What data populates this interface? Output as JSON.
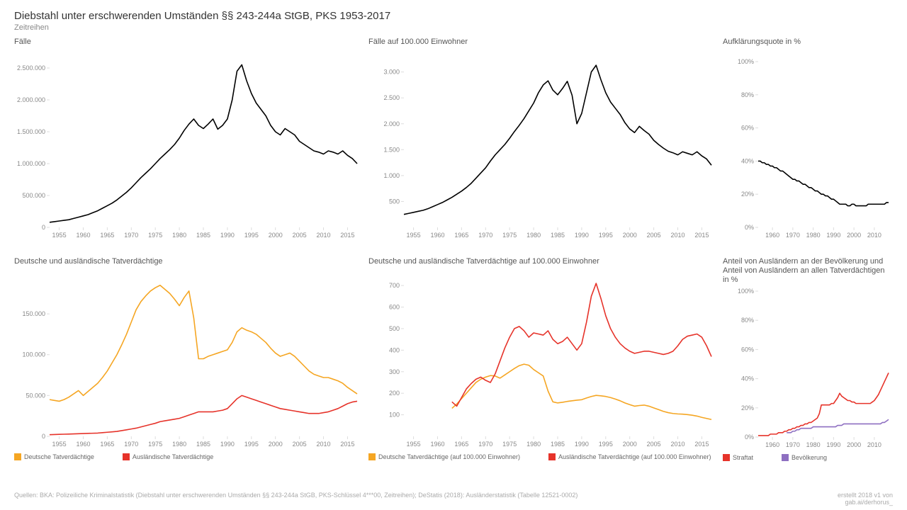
{
  "title": "Diebstahl unter erschwerenden Umständen §§ 243-244a StGB, PKS 1953-2017",
  "subtitle": "Zeitreihen",
  "colors": {
    "main": "#000000",
    "orange": "#f5a623",
    "red": "#e6332a",
    "purple": "#8e6fc1",
    "grid": "#dddddd",
    "text": "#888888",
    "bg": "#ffffff"
  },
  "footer": {
    "sources": "Quellen: BKA: Polizeiliche Kriminalstatistik (Diebstahl unter erschwerenden Umständen §§ 243-244a StGB, PKS-Schlüssel 4***00, Zeitreihen); DeStatis (2018): Ausländerstatistik (Tabelle 12521-0002)",
    "credit_line1": "erstellt 2018 v1 von",
    "credit_line2": "gab.ai/derhorus_"
  },
  "years_full": [
    1953,
    1954,
    1955,
    1956,
    1957,
    1958,
    1959,
    1960,
    1961,
    1962,
    1963,
    1964,
    1965,
    1966,
    1967,
    1968,
    1969,
    1970,
    1971,
    1972,
    1973,
    1974,
    1975,
    1976,
    1977,
    1978,
    1979,
    1980,
    1981,
    1982,
    1983,
    1984,
    1985,
    1986,
    1987,
    1988,
    1989,
    1990,
    1991,
    1992,
    1993,
    1994,
    1995,
    1996,
    1997,
    1998,
    1999,
    2000,
    2001,
    2002,
    2003,
    2004,
    2005,
    2006,
    2007,
    2008,
    2009,
    2010,
    2011,
    2012,
    2013,
    2014,
    2015,
    2016,
    2017
  ],
  "xticks_full": [
    1955,
    1960,
    1965,
    1970,
    1975,
    1980,
    1985,
    1990,
    1995,
    2000,
    2005,
    2010,
    2015
  ],
  "panels": {
    "p1": {
      "title": "Fälle",
      "ylim": [
        0,
        2600000
      ],
      "yticks": [
        0,
        500000,
        1000000,
        1500000,
        2000000,
        2500000
      ],
      "ytick_labels": [
        "0",
        "500.000",
        "1.000.000",
        "1.500.000",
        "2.000.000",
        "2.500.000"
      ],
      "xlim": [
        1953,
        2017
      ],
      "series": [
        {
          "color": "#000000",
          "width": 1.6,
          "x": "years_full",
          "y": [
            80000,
            90000,
            100000,
            110000,
            120000,
            140000,
            160000,
            180000,
            200000,
            230000,
            260000,
            300000,
            340000,
            380000,
            430000,
            490000,
            550000,
            620000,
            700000,
            780000,
            850000,
            920000,
            1000000,
            1080000,
            1150000,
            1220000,
            1300000,
            1400000,
            1520000,
            1620000,
            1700000,
            1600000,
            1550000,
            1620000,
            1700000,
            1540000,
            1600000,
            1700000,
            2000000,
            2450000,
            2550000,
            2300000,
            2100000,
            1950000,
            1850000,
            1750000,
            1600000,
            1500000,
            1450000,
            1550000,
            1500000,
            1450000,
            1350000,
            1300000,
            1250000,
            1200000,
            1180000,
            1150000,
            1200000,
            1180000,
            1150000,
            1200000,
            1130000,
            1080000,
            1000000
          ]
        }
      ]
    },
    "p2": {
      "title": "Fälle auf 100.000 Einwohner",
      "ylim": [
        0,
        3200
      ],
      "yticks": [
        500,
        1000,
        1500,
        2000,
        2500,
        3000
      ],
      "ytick_labels": [
        "500",
        "1.000",
        "1.500",
        "2.000",
        "2.500",
        "3.000"
      ],
      "xlim": [
        1953,
        2017
      ],
      "series": [
        {
          "color": "#000000",
          "width": 1.6,
          "x": "years_full",
          "y": [
            250,
            270,
            290,
            310,
            330,
            360,
            400,
            440,
            480,
            530,
            580,
            640,
            700,
            770,
            850,
            950,
            1050,
            1150,
            1280,
            1400,
            1500,
            1600,
            1720,
            1850,
            1970,
            2100,
            2250,
            2400,
            2600,
            2750,
            2830,
            2650,
            2560,
            2680,
            2820,
            2550,
            2000,
            2200,
            2600,
            3000,
            3130,
            2850,
            2600,
            2420,
            2300,
            2180,
            2020,
            1900,
            1830,
            1950,
            1870,
            1800,
            1680,
            1600,
            1530,
            1470,
            1440,
            1400,
            1460,
            1430,
            1400,
            1460,
            1380,
            1320,
            1200
          ]
        }
      ]
    },
    "p3": {
      "title": "Aufklärungsquote in %",
      "ylim": [
        0,
        100
      ],
      "yticks": [
        0,
        20,
        40,
        60,
        80,
        100
      ],
      "ytick_labels": [
        "0%",
        "20%",
        "40%",
        "60%",
        "80%",
        "100%"
      ],
      "xlim": [
        1953,
        2017
      ],
      "xticks": [
        1960,
        1970,
        1980,
        1990,
        2000,
        2010
      ],
      "series": [
        {
          "color": "#000000",
          "width": 1.6,
          "x": "years_full",
          "y": [
            40,
            40,
            39,
            39,
            38,
            38,
            37,
            37,
            36,
            36,
            35,
            34,
            34,
            33,
            32,
            31,
            30,
            29,
            29,
            28,
            28,
            27,
            26,
            26,
            25,
            24,
            24,
            23,
            22,
            22,
            21,
            20,
            20,
            19,
            19,
            18,
            17,
            17,
            16,
            15,
            14,
            14,
            14,
            14,
            13,
            13,
            14,
            14,
            13,
            13,
            13,
            13,
            13,
            13,
            14,
            14,
            14,
            14,
            14,
            14,
            14,
            14,
            14,
            15,
            15
          ]
        }
      ]
    },
    "p4": {
      "title": "Deutsche und ausländische Tatverdächtige",
      "ylim": [
        0,
        190000
      ],
      "yticks": [
        0,
        50000,
        100000,
        150000
      ],
      "ytick_labels": [
        "0",
        "50.000",
        "100.000",
        "150.000"
      ],
      "xlim": [
        1953,
        2017
      ],
      "series": [
        {
          "color": "#f5a623",
          "width": 1.6,
          "x": "years_full",
          "y": [
            45000,
            44000,
            43000,
            45000,
            48000,
            52000,
            56000,
            50000,
            55000,
            60000,
            65000,
            72000,
            80000,
            90000,
            100000,
            112000,
            125000,
            140000,
            155000,
            165000,
            172000,
            178000,
            182000,
            185000,
            180000,
            175000,
            168000,
            160000,
            170000,
            178000,
            145000,
            95000,
            95000,
            98000,
            100000,
            102000,
            104000,
            106000,
            115000,
            128000,
            133000,
            130000,
            128000,
            125000,
            120000,
            115000,
            108000,
            102000,
            98000,
            100000,
            102000,
            98000,
            92000,
            86000,
            80000,
            76000,
            74000,
            72000,
            72000,
            70000,
            68000,
            65000,
            60000,
            56000,
            52000
          ]
        },
        {
          "color": "#e6332a",
          "width": 1.6,
          "x": "years_full",
          "y": [
            2000,
            2200,
            2400,
            2600,
            2800,
            3000,
            3200,
            3400,
            3600,
            3800,
            4000,
            4500,
            5000,
            5500,
            6000,
            7000,
            8000,
            9000,
            10000,
            11500,
            13000,
            14500,
            16000,
            18000,
            19000,
            20000,
            21000,
            22000,
            24000,
            26000,
            28000,
            30000,
            30000,
            30000,
            30000,
            31000,
            32000,
            34000,
            40000,
            46000,
            50000,
            48000,
            46000,
            44000,
            42000,
            40000,
            38000,
            36000,
            34000,
            33000,
            32000,
            31000,
            30000,
            29000,
            28000,
            28000,
            28000,
            29000,
            30000,
            32000,
            34000,
            37000,
            40000,
            42000,
            43000
          ]
        }
      ],
      "legend": [
        {
          "color": "#f5a623",
          "label": "Deutsche Tatverdächtige"
        },
        {
          "color": "#e6332a",
          "label": "Ausländische Tatverdächtige"
        }
      ]
    },
    "p5": {
      "title": "Deutsche und ausländische Tatverdächtige auf 100.000 Einwohner",
      "ylim": [
        0,
        720
      ],
      "yticks": [
        100,
        200,
        300,
        400,
        500,
        600,
        700
      ],
      "ytick_labels": [
        "100",
        "200",
        "300",
        "400",
        "500",
        "600",
        "700"
      ],
      "xlim": [
        1953,
        2017
      ],
      "series": [
        {
          "color": "#f5a623",
          "width": 1.6,
          "x": [
            1963,
            1964,
            1965,
            1966,
            1967,
            1968,
            1969,
            1970,
            1971,
            1972,
            1973,
            1974,
            1975,
            1976,
            1977,
            1978,
            1979,
            1980,
            1981,
            1982,
            1983,
            1984,
            1985,
            1986,
            1987,
            1988,
            1989,
            1990,
            1991,
            1992,
            1993,
            1994,
            1995,
            1996,
            1997,
            1998,
            1999,
            2000,
            2001,
            2002,
            2003,
            2004,
            2005,
            2006,
            2007,
            2008,
            2009,
            2010,
            2011,
            2012,
            2013,
            2014,
            2015,
            2016,
            2017
          ],
          "y": [
            130,
            150,
            175,
            200,
            225,
            250,
            265,
            275,
            282,
            280,
            270,
            285,
            300,
            315,
            328,
            335,
            330,
            310,
            295,
            280,
            210,
            160,
            155,
            158,
            162,
            165,
            168,
            170,
            178,
            185,
            190,
            188,
            185,
            180,
            173,
            165,
            155,
            147,
            140,
            143,
            145,
            140,
            132,
            124,
            116,
            110,
            106,
            104,
            103,
            101,
            98,
            94,
            88,
            83,
            78
          ]
        },
        {
          "color": "#e6332a",
          "width": 1.6,
          "x": [
            1963,
            1964,
            1965,
            1966,
            1967,
            1968,
            1969,
            1970,
            1971,
            1972,
            1973,
            1974,
            1975,
            1976,
            1977,
            1978,
            1979,
            1980,
            1981,
            1982,
            1983,
            1984,
            1985,
            1986,
            1987,
            1988,
            1989,
            1990,
            1991,
            1992,
            1993,
            1994,
            1995,
            1996,
            1997,
            1998,
            1999,
            2000,
            2001,
            2002,
            2003,
            2004,
            2005,
            2006,
            2007,
            2008,
            2009,
            2010,
            2011,
            2012,
            2013,
            2014,
            2015,
            2016,
            2017
          ],
          "y": [
            160,
            140,
            180,
            220,
            245,
            265,
            275,
            260,
            250,
            290,
            350,
            410,
            460,
            500,
            510,
            490,
            460,
            480,
            475,
            470,
            490,
            450,
            430,
            440,
            460,
            430,
            400,
            430,
            530,
            650,
            710,
            640,
            560,
            500,
            460,
            430,
            410,
            395,
            385,
            390,
            395,
            395,
            390,
            385,
            380,
            385,
            395,
            420,
            450,
            465,
            470,
            475,
            460,
            420,
            370
          ]
        }
      ],
      "legend": [
        {
          "color": "#f5a623",
          "label": "Deutsche Tatverdächtige (auf 100.000 Einwohner)"
        },
        {
          "color": "#e6332a",
          "label": "Ausländische Tatverdächtige (auf 100.000 Einwohner)"
        }
      ]
    },
    "p6": {
      "title": "Anteil von Ausländern an der Bevölkerung und Anteil von Ausländern an allen Tatverdächtigen in %",
      "ylim": [
        0,
        100
      ],
      "yticks": [
        0,
        20,
        40,
        60,
        80,
        100
      ],
      "ytick_labels": [
        "0%",
        "20%",
        "40%",
        "60%",
        "80%",
        "100%"
      ],
      "xlim": [
        1953,
        2017
      ],
      "xticks": [
        1960,
        1970,
        1980,
        1990,
        2000,
        2010
      ],
      "series": [
        {
          "color": "#e6332a",
          "width": 1.6,
          "x": "years_full",
          "y": [
            1,
            1,
            1,
            1,
            1,
            1,
            2,
            2,
            2,
            2,
            3,
            3,
            3,
            4,
            4,
            5,
            5,
            6,
            6,
            7,
            7,
            8,
            8,
            9,
            9,
            10,
            10,
            11,
            12,
            13,
            16,
            22,
            22,
            22,
            22,
            22,
            23,
            23,
            25,
            27,
            30,
            28,
            27,
            26,
            25,
            25,
            24,
            24,
            23,
            23,
            23,
            23,
            23,
            23,
            23,
            23,
            24,
            25,
            27,
            29,
            32,
            35,
            38,
            41,
            44
          ]
        },
        {
          "color": "#8e6fc1",
          "width": 1.6,
          "x": [
            1967,
            1968,
            1969,
            1970,
            1971,
            1972,
            1973,
            1974,
            1975,
            1976,
            1977,
            1978,
            1979,
            1980,
            1981,
            1982,
            1983,
            1984,
            1985,
            1986,
            1987,
            1988,
            1989,
            1990,
            1991,
            1992,
            1993,
            1994,
            1995,
            1996,
            1997,
            1998,
            1999,
            2000,
            2001,
            2002,
            2003,
            2004,
            2005,
            2006,
            2007,
            2008,
            2009,
            2010,
            2011,
            2012,
            2013,
            2014,
            2015,
            2016,
            2017
          ],
          "y": [
            3,
            3,
            3,
            4,
            4,
            5,
            5,
            6,
            6,
            6,
            6,
            6,
            6,
            7,
            7,
            7,
            7,
            7,
            7,
            7,
            7,
            7,
            7,
            7,
            7,
            8,
            8,
            8,
            9,
            9,
            9,
            9,
            9,
            9,
            9,
            9,
            9,
            9,
            9,
            9,
            9,
            9,
            9,
            9,
            9,
            9,
            9,
            10,
            10,
            11,
            12
          ]
        }
      ],
      "legend": [
        {
          "color": "#e6332a",
          "label": "Straftat"
        },
        {
          "color": "#8e6fc1",
          "label": "Bevölkerung"
        }
      ]
    }
  }
}
